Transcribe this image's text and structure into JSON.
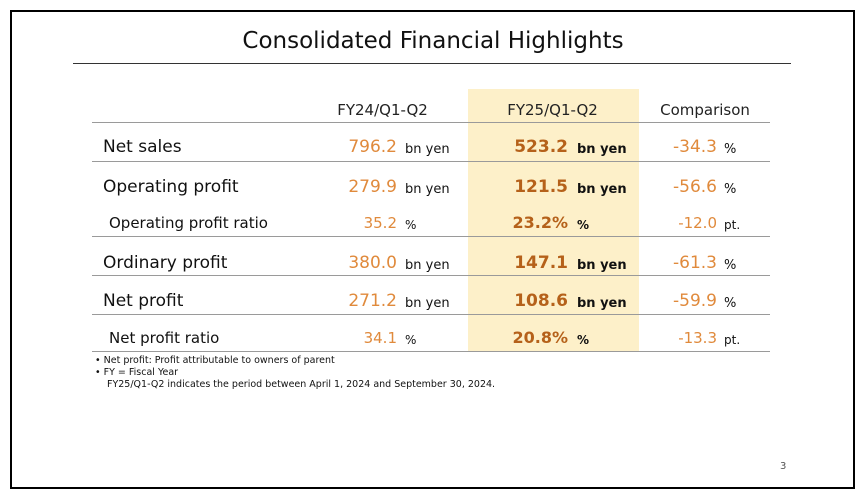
{
  "title": "Consolidated Financial Highlights",
  "headers": {
    "prev": "FY24/Q1-Q2",
    "curr": "FY25/Q1-Q2",
    "comparison": "Comparison"
  },
  "rows": [
    {
      "label": "Net sales",
      "prev": "796.2",
      "prev_unit": "bn yen",
      "curr": "523.2",
      "curr_unit": "bn yen",
      "cmp": "-34.3",
      "cmp_unit": "%"
    },
    {
      "label": "Operating profit",
      "prev": "279.9",
      "prev_unit": "bn yen",
      "curr": "121.5",
      "curr_unit": "bn yen",
      "cmp": "-56.6",
      "cmp_unit": "%"
    },
    {
      "label": "Operating profit ratio",
      "prev": "35.2",
      "prev_unit": "%",
      "curr": "23.2%",
      "curr_unit": "%",
      "cmp": "-12.0",
      "cmp_unit": "pt."
    },
    {
      "label": "Ordinary profit",
      "prev": "380.0",
      "prev_unit": "bn yen",
      "curr": "147.1",
      "curr_unit": "bn yen",
      "cmp": "-61.3",
      "cmp_unit": "%"
    },
    {
      "label": "Net profit",
      "prev": "271.2",
      "prev_unit": "bn yen",
      "curr": "108.6",
      "curr_unit": "bn yen",
      "cmp": "-59.9",
      "cmp_unit": "%"
    },
    {
      "label": "Net profit ratio",
      "prev": "34.1",
      "prev_unit": "%",
      "curr": "20.8%",
      "curr_unit": "%",
      "cmp": "-13.3",
      "cmp_unit": "pt."
    }
  ],
  "notes": [
    "•  Net profit: Profit attributable to owners of parent",
    "•  FY = Fiscal Year",
    "FY25/Q1-Q2 indicates the period between April 1, 2024 and September 30, 2024."
  ],
  "page_number": "3",
  "colors": {
    "highlight": "#fdf0c9",
    "value_orange": "#e08a3c",
    "bold_brown": "#b5611a"
  }
}
